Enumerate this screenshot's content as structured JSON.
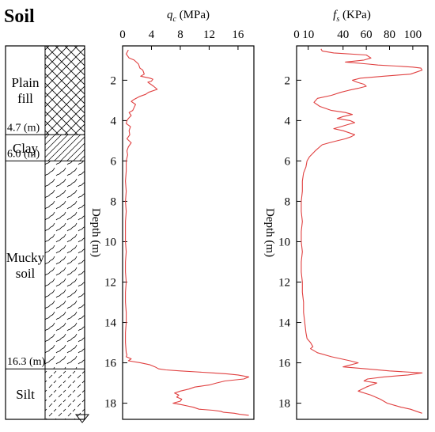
{
  "soil_column": {
    "title": "Soil",
    "layers": [
      {
        "name_lines": [
          "Plain",
          "fill"
        ],
        "top": 0.3,
        "bottom": 4.7,
        "pattern": "crosshatch"
      },
      {
        "name_lines": [
          "Clay"
        ],
        "top": 4.7,
        "bottom": 6.0,
        "pattern": "diagonal"
      },
      {
        "name_lines": [
          "Mucky",
          "soil"
        ],
        "top": 6.0,
        "bottom": 16.3,
        "pattern": "wavy"
      },
      {
        "name_lines": [
          "Silt"
        ],
        "top": 16.3,
        "bottom": 18.8,
        "pattern": "dashed-diagonal"
      }
    ],
    "boundary_labels": [
      "4.7 (m)",
      "6.0 (m)",
      "16.3 (m)"
    ]
  },
  "chart_data": [
    {
      "type": "line",
      "title_main": "q",
      "title_sub": "c",
      "title_unit": " (MPa)",
      "ylabel": "Depth (m)",
      "xlim": [
        0,
        18.2
      ],
      "ylim": [
        0.3,
        18.8
      ],
      "x_ticks": [
        0,
        4,
        8,
        12,
        16
      ],
      "y_ticks": [
        2,
        4,
        6,
        8,
        10,
        12,
        14,
        16,
        18
      ],
      "line_color": "#e04040",
      "series": [
        {
          "x": [
            0.8,
            0.5,
            0.9,
            1.6,
            2.2,
            2.4,
            2.8,
            3.0,
            2.5,
            3.8,
            4.2,
            4.0,
            3.5,
            4.3,
            4.8,
            3.6,
            3.2,
            2.4,
            1.6,
            1.2,
            1.8,
            1.6,
            1.4,
            0.9,
            1.2,
            0.8,
            0.6,
            0.5,
            1.1,
            0.9,
            1.0,
            0.6,
            1.2,
            0.8,
            0.6,
            0.7,
            0.5,
            0.5,
            0.4,
            0.5,
            0.4,
            0.5,
            0.4,
            0.4,
            0.4,
            0.5,
            0.4,
            0.4,
            0.5,
            0.4,
            0.4,
            0.5,
            0.5,
            0.4,
            0.4,
            0.5,
            0.6,
            0.5,
            1.2,
            0.8,
            2.5,
            3.8,
            4.5,
            5.0,
            6.0,
            8.0,
            10.2,
            12.5,
            14.5,
            16.0,
            17.5,
            16.8,
            14.2,
            13.0,
            12.0,
            10.0,
            9.2,
            8.0,
            7.2,
            7.8,
            7.5,
            8.2,
            8.0,
            7.0,
            8.5,
            9.8,
            10.6,
            12.5,
            13.6,
            14.0,
            15.5,
            16.2,
            17.5
          ],
          "y": [
            0.5,
            0.7,
            0.9,
            1.0,
            1.2,
            1.4,
            1.5,
            1.7,
            1.8,
            1.9,
            1.95,
            2.05,
            2.1,
            2.3,
            2.45,
            2.6,
            2.7,
            2.8,
            2.95,
            3.05,
            3.2,
            3.35,
            3.5,
            3.6,
            3.75,
            3.9,
            4.0,
            4.15,
            4.3,
            4.5,
            4.7,
            4.9,
            5.1,
            5.3,
            5.5,
            5.7,
            6.0,
            6.5,
            7.0,
            7.5,
            8.0,
            8.5,
            9.0,
            9.5,
            10.0,
            10.5,
            11.0,
            11.5,
            12.0,
            12.5,
            13.0,
            13.5,
            14.0,
            14.5,
            15.0,
            15.5,
            15.6,
            15.7,
            15.8,
            15.9,
            16.0,
            16.1,
            16.2,
            16.3,
            16.35,
            16.4,
            16.45,
            16.5,
            16.55,
            16.6,
            16.7,
            16.8,
            16.9,
            17.0,
            17.1,
            17.2,
            17.3,
            17.4,
            17.5,
            17.6,
            17.7,
            17.8,
            17.9,
            18.0,
            18.1,
            18.2,
            18.3,
            18.35,
            18.4,
            18.45,
            18.5,
            18.55,
            18.6
          ]
        }
      ]
    },
    {
      "type": "line",
      "title_main": "f",
      "title_sub": "s",
      "title_unit": " (KPa)",
      "ylabel": "Depth (m)",
      "xlim": [
        0,
        113
      ],
      "ylim": [
        0.3,
        18.8
      ],
      "x_ticks": [
        0,
        10,
        40,
        60,
        80,
        100
      ],
      "y_ticks": [
        2,
        4,
        6,
        8,
        10,
        12,
        14,
        16,
        18
      ],
      "line_color": "#e04040",
      "series": [
        {
          "x": [
            21,
            22,
            32,
            60,
            64,
            58,
            42,
            62,
            70,
            86,
            100,
            107,
            108,
            103,
            98,
            75,
            55,
            48,
            52,
            58,
            60,
            53,
            45,
            38,
            30,
            18,
            15,
            20,
            30,
            42,
            48,
            40,
            35,
            46,
            50,
            44,
            38,
            32,
            40,
            45,
            50,
            47,
            42,
            35,
            28,
            22,
            16,
            11,
            9,
            8,
            6,
            5,
            5,
            4,
            4,
            5,
            4,
            4,
            5,
            4,
            4,
            5,
            5,
            6,
            6,
            7,
            8,
            9,
            12,
            14,
            12,
            18,
            30,
            46,
            53,
            40,
            60,
            80,
            108,
            96,
            75,
            61,
            58,
            69,
            60,
            53,
            64,
            72,
            78,
            90,
            98,
            103,
            108
          ],
          "y": [
            0.45,
            0.55,
            0.65,
            0.75,
            0.9,
            1.0,
            1.1,
            1.2,
            1.25,
            1.3,
            1.35,
            1.4,
            1.5,
            1.6,
            1.7,
            1.8,
            1.9,
            2.0,
            2.1,
            2.2,
            2.3,
            2.4,
            2.5,
            2.6,
            2.75,
            2.9,
            3.1,
            3.3,
            3.5,
            3.6,
            3.7,
            3.8,
            3.9,
            4.0,
            4.1,
            4.2,
            4.3,
            4.4,
            4.5,
            4.6,
            4.7,
            4.8,
            4.9,
            5.0,
            5.1,
            5.2,
            5.5,
            5.8,
            6.0,
            6.3,
            6.6,
            7.0,
            7.5,
            8.0,
            8.5,
            9.0,
            9.5,
            10.0,
            10.5,
            11.0,
            11.5,
            12.0,
            12.5,
            13.0,
            13.5,
            14.0,
            14.5,
            14.8,
            15.0,
            15.2,
            15.3,
            15.5,
            15.7,
            15.9,
            16.0,
            16.2,
            16.3,
            16.4,
            16.5,
            16.6,
            16.7,
            16.8,
            16.9,
            17.0,
            17.2,
            17.4,
            17.6,
            17.8,
            18.0,
            18.2,
            18.3,
            18.4,
            18.5
          ]
        }
      ]
    }
  ]
}
